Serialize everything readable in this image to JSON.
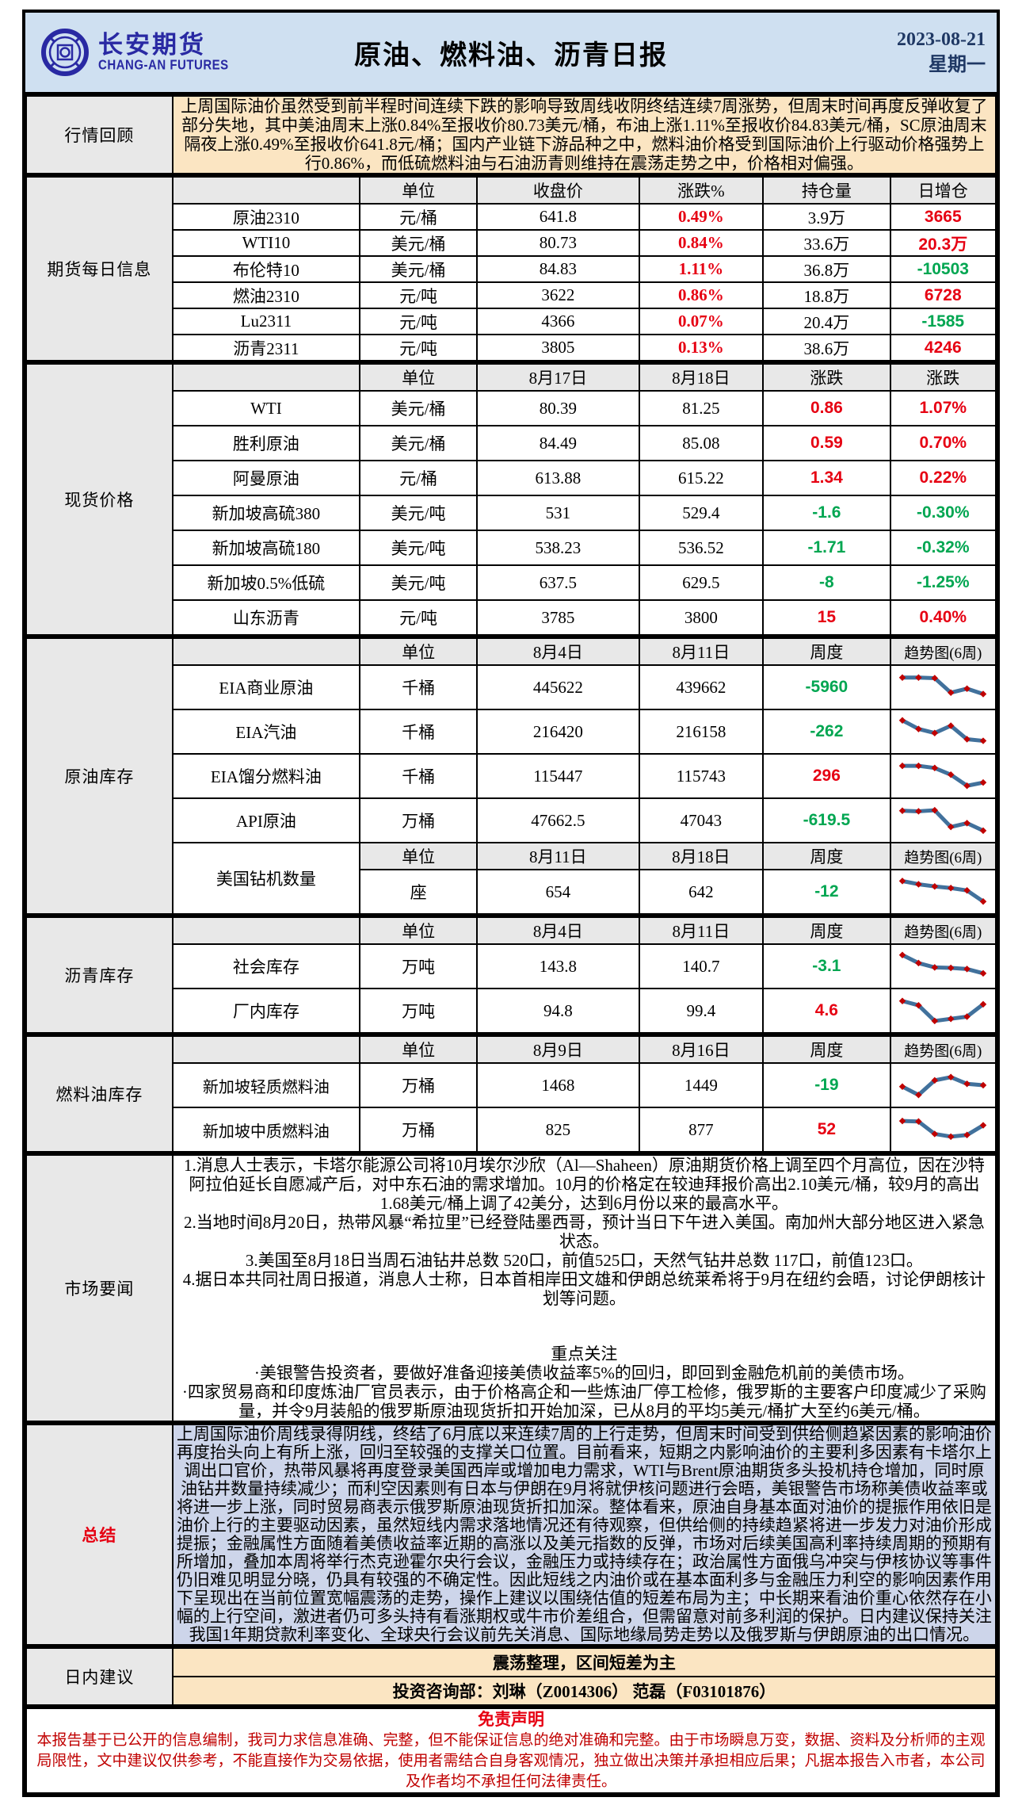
{
  "header": {
    "brand_cn": "长安期货",
    "brand_en": "CHANG-AN FUTURES",
    "title": "原油、燃料油、沥青日报",
    "date": "2023-08-21",
    "weekday": "星期一",
    "logo_icon": "changan-coin-logo"
  },
  "colors": {
    "band_bg": "#CFE0F1",
    "cream_bg": "#FBE5C2",
    "gray_bg": "#E8E8E8",
    "summary_bg": "#CDD5EA",
    "up_red": "#E60012",
    "down_green": "#00A651",
    "spark_line": "#41719C",
    "spark_marker": "#C00000",
    "brand_blue": "#2929A3"
  },
  "review": {
    "label": "行情回顾",
    "text": "上周国际油价虽然受到前半程时间连续下跌的影响导致周线收阴终结连续7周涨势，但周末时间再度反弹收复了部分失地，其中美油周末上涨0.84%至报收价80.73美元/桶，布油上涨1.11%至报收价84.83美元/桶，SC原油周末隔夜上涨0.49%至报收价641.8元/桶；国内产业链下游品种之中，燃料油价格受到国际油价上行驱动价格强势上行0.86%，而低硫燃料油与石油沥青则维持在震荡走势之中，价格相对偏强。"
  },
  "futures": {
    "label": "期货每日信息",
    "headers": {
      "unit": "单位",
      "close": "收盘价",
      "chg": "涨跌%",
      "oi": "持仓量",
      "oi_chg": "日增仓"
    },
    "rows": [
      {
        "name": "原油2310",
        "unit": "元/桶",
        "close": "641.8",
        "chg": "0.49%",
        "chg_dir": "up",
        "oi": "3.9万",
        "oi_chg": "3665",
        "oi_chg_dir": "up"
      },
      {
        "name": "WTI10",
        "unit": "美元/桶",
        "close": "80.73",
        "chg": "0.84%",
        "chg_dir": "up",
        "oi": "33.6万",
        "oi_chg": "20.3万",
        "oi_chg_dir": "up"
      },
      {
        "name": "布伦特10",
        "unit": "美元/桶",
        "close": "84.83",
        "chg": "1.11%",
        "chg_dir": "up",
        "oi": "36.8万",
        "oi_chg": "-10503",
        "oi_chg_dir": "down"
      },
      {
        "name": "燃油2310",
        "unit": "元/吨",
        "close": "3622",
        "chg": "0.86%",
        "chg_dir": "up",
        "oi": "18.8万",
        "oi_chg": "6728",
        "oi_chg_dir": "up"
      },
      {
        "name": "Lu2311",
        "unit": "元/吨",
        "close": "4366",
        "chg": "0.07%",
        "chg_dir": "up",
        "oi": "20.4万",
        "oi_chg": "-1585",
        "oi_chg_dir": "down"
      },
      {
        "name": "沥青2311",
        "unit": "元/吨",
        "close": "3805",
        "chg": "0.13%",
        "chg_dir": "up",
        "oi": "38.6万",
        "oi_chg": "4246",
        "oi_chg_dir": "up"
      }
    ]
  },
  "spot": {
    "label": "现货价格",
    "headers": {
      "unit": "单位",
      "d1": "8月17日",
      "d2": "8月18日",
      "chg": "涨跌",
      "pct": "涨跌"
    },
    "rows": [
      {
        "name": "WTI",
        "unit": "美元/桶",
        "v1": "80.39",
        "v2": "81.25",
        "chg": "0.86",
        "chg_dir": "up",
        "pct": "1.07%",
        "pct_dir": "up"
      },
      {
        "name": "胜利原油",
        "unit": "美元/桶",
        "v1": "84.49",
        "v2": "85.08",
        "chg": "0.59",
        "chg_dir": "up",
        "pct": "0.70%",
        "pct_dir": "up"
      },
      {
        "name": "阿曼原油",
        "unit": "元/桶",
        "v1": "613.88",
        "v2": "615.22",
        "chg": "1.34",
        "chg_dir": "up",
        "pct": "0.22%",
        "pct_dir": "up"
      },
      {
        "name": "新加坡高硫380",
        "unit": "美元/吨",
        "v1": "531",
        "v2": "529.4",
        "chg": "-1.6",
        "chg_dir": "down",
        "pct": "-0.30%",
        "pct_dir": "down"
      },
      {
        "name": "新加坡高硫180",
        "unit": "美元/吨",
        "v1": "538.23",
        "v2": "536.52",
        "chg": "-1.71",
        "chg_dir": "down",
        "pct": "-0.32%",
        "pct_dir": "down"
      },
      {
        "name": "新加坡0.5%低硫",
        "unit": "美元/吨",
        "v1": "637.5",
        "v2": "629.5",
        "chg": "-8",
        "chg_dir": "down",
        "pct": "-1.25%",
        "pct_dir": "down"
      },
      {
        "name": "山东沥青",
        "unit": "元/吨",
        "v1": "3785",
        "v2": "3800",
        "chg": "15",
        "chg_dir": "up",
        "pct": "0.40%",
        "pct_dir": "up"
      }
    ]
  },
  "crude_inv": {
    "label": "原油库存",
    "headers": {
      "unit": "单位",
      "d1": "8月4日",
      "d2": "8月11日",
      "wk": "周度",
      "trend": "趋势图(6周)"
    },
    "rows": [
      {
        "name": "EIA商业原油",
        "unit": "千桶",
        "v1": "445622",
        "v2": "439662",
        "chg": "-5960",
        "chg_dir": "down",
        "trend": [
          0.86,
          0.86,
          0.84,
          0.3,
          0.45,
          0.25
        ]
      },
      {
        "name": "EIA汽油",
        "unit": "千桶",
        "v1": "216420",
        "v2": "216158",
        "chg": "-262",
        "chg_dir": "down",
        "trend": [
          0.92,
          0.6,
          0.45,
          0.72,
          0.22,
          0.16
        ]
      },
      {
        "name": "EIA馏分燃料油",
        "unit": "千桶",
        "v1": "115447",
        "v2": "115743",
        "chg": "296",
        "chg_dir": "up",
        "trend": [
          0.88,
          0.88,
          0.8,
          0.55,
          0.14,
          0.26
        ]
      },
      {
        "name": "API原油",
        "unit": "万桶",
        "v1": "47662.5",
        "v2": "47043",
        "chg": "-619.5",
        "chg_dir": "down",
        "trend": [
          0.86,
          0.84,
          0.88,
          0.26,
          0.4,
          0.12
        ]
      }
    ],
    "rig": {
      "name": "美国钻机数量",
      "headers": {
        "unit": "单位",
        "d1": "8月11日",
        "d2": "8月18日",
        "wk": "周度",
        "trend": "趋势图(6周)"
      },
      "row": {
        "unit": "座",
        "v1": "654",
        "v2": "642",
        "chg": "-12",
        "chg_dir": "down",
        "trend": [
          0.9,
          0.78,
          0.7,
          0.64,
          0.55,
          0.14
        ]
      }
    }
  },
  "asphalt_inv": {
    "label": "沥青库存",
    "headers": {
      "unit": "单位",
      "d1": "8月4日",
      "d2": "8月11日",
      "wk": "周度",
      "trend": "趋势图(6周)"
    },
    "rows": [
      {
        "name": "社会库存",
        "unit": "万吨",
        "v1": "143.8",
        "v2": "140.7",
        "chg": "-3.1",
        "chg_dir": "down",
        "trend": [
          0.92,
          0.62,
          0.46,
          0.44,
          0.4,
          0.24
        ]
      },
      {
        "name": "厂内库存",
        "unit": "万吨",
        "v1": "94.8",
        "v2": "99.4",
        "chg": "4.6",
        "chg_dir": "up",
        "trend": [
          0.86,
          0.7,
          0.12,
          0.2,
          0.28,
          0.74
        ]
      }
    ]
  },
  "fuel_inv": {
    "label": "燃料油库存",
    "headers": {
      "unit": "单位",
      "d1": "8月9日",
      "d2": "8月16日",
      "wk": "周度",
      "trend": "趋势图(6周)"
    },
    "rows": [
      {
        "name": "新加坡轻质燃料油",
        "unit": "万桶",
        "v1": "1468",
        "v2": "1449",
        "chg": "-19",
        "chg_dir": "down",
        "trend": [
          0.45,
          0.14,
          0.68,
          0.8,
          0.55,
          0.5
        ]
      },
      {
        "name": "新加坡中质燃料油",
        "unit": "万桶",
        "v1": "825",
        "v2": "877",
        "chg": "52",
        "chg_dir": "up",
        "trend": [
          0.82,
          0.8,
          0.34,
          0.24,
          0.3,
          0.66
        ]
      }
    ]
  },
  "news": {
    "label": "市场要闻",
    "items": [
      "1.消息人士表示，卡塔尔能源公司将10月埃尔沙欣（Al—Shaheen）原油期货价格上调至四个月高位，因在沙特阿拉伯延长自愿减产后，对中东石油的需求增加。10月的价格定在较迪拜报价高出2.10美元/桶，较9月的高出1.68美元/桶上调了42美分，达到6月份以来的最高水平。",
      "2.当地时间8月20日，热带风暴“希拉里”已经登陆墨西哥，预计当日下午进入美国。南加州大部分地区进入紧急状态。",
      "3.美国至8月18日当周石油钻井总数 520口，前值525口，天然气钻井总数 117口，前值123口。",
      "4.据日本共同社周日报道，消息人士称，日本首相岸田文雄和伊朗总统莱希将于9月在纽约会晤，讨论伊朗核计划等问题。"
    ],
    "focus_title": "重点关注",
    "focus_items": [
      "·美银警告投资者，要做好准备迎接美债收益率5%的回归，即回到金融危机前的美债市场。",
      "·四家贸易商和印度炼油厂官员表示，由于价格高企和一些炼油厂停工检修，俄罗斯的主要客户印度减少了采购量，并令9月装船的俄罗斯原油现货折扣开始加深，已从8月的平均5美元/桶扩大至约6美元/桶。"
    ]
  },
  "summary": {
    "label": "总结",
    "text": "上周国际油价周线录得阴线，终结了6月底以来连续7周的上行走势，但周末时间受到供给侧趋紧因素的影响油价再度抬头向上有所上涨，回归至较强的支撑关口位置。目前看来，短期之内影响油价的主要利多因素有卡塔尔上调出口官价，热带风暴将再度登录美国西岸或增加电力需求，WTI与Brent原油期货多头投机持仓增加，同时原油钻井数量持续减少；而利空因素则有日本与伊朗在9月将就伊核问题进行会晤，美银警告市场称美债收益率或将进一步上涨，同时贸易商表示俄罗斯原油现货折扣加深。整体看来，原油自身基本面对油价的提振作用依旧是油价上行的主要驱动因素，虽然短线内需求落地情况还有待观察，但供给侧的持续趋紧将进一步发力对油价形成提振；金融属性方面随着美债收益率近期的高涨以及美元指数的反弹，市场对后续美国高利率持续周期的预期有所增加，叠加本周将举行杰克逊霍尔央行会议，金融压力或持续存在；政治属性方面俄乌冲突与伊核协议等事件仍旧难见明显分晓，仍具有较强的不确定性。因此短线之内油价或在基本面利多与金融压力利空的影响因素作用下呈现出在当前位置宽幅震荡的走势，操作上建议以围绕估值的短差布局为主；中长期来看油价重心依然存在小幅的上行空间，激进者仍可多头持有看涨期权或牛市价差组合，但需留意对前多利润的保护。日内建议保持关注我国1年期贷款利率变化、全球央行会议前先关消息、国际地缘局势走势以及俄罗斯与伊朗原油的出口情况。"
  },
  "advice": {
    "label": "日内建议",
    "main": "震荡整理，区间短差为主",
    "consultants": "投资咨询部：刘琳（Z0014306） 范磊（F03101876）"
  },
  "disclaimer": {
    "title": "免责声明",
    "text": "本报告基于已公开的信息编制，我司力求信息准确、完整，但不能保证信息的绝对准确和完整。由于市场瞬息万变，数据、资料及分析师的主观局限性，文中建议仅供参考，不能直接作为交易依据，使用者需结合自身客观情况，独立做出决策并承担相应后果；凡据本报告入市者，本公司及作者均不承担任何法律责任。"
  }
}
